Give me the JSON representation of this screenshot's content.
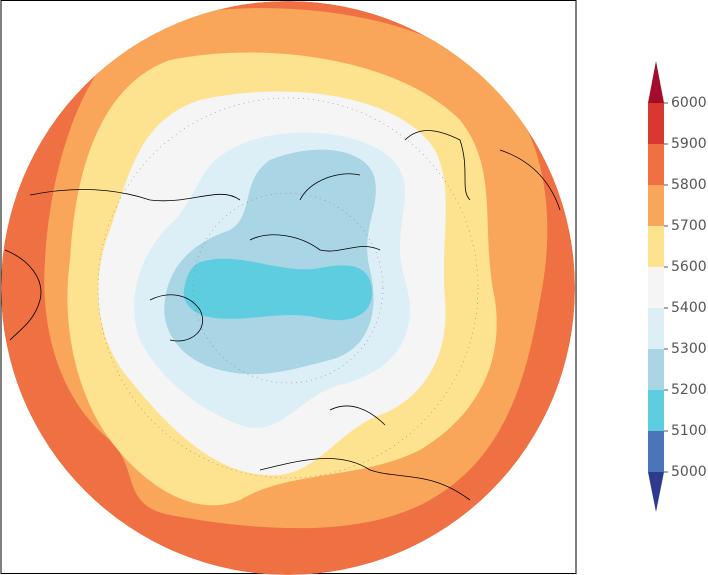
{
  "colorbar": {
    "levels": [
      5000,
      5100,
      5200,
      5300,
      5400,
      5600,
      5700,
      5800,
      5900,
      6000
    ],
    "colors": [
      "#2d3a8e",
      "#4a76b9",
      "#5fcde0",
      "#a9d5e5",
      "#ddeff6",
      "#f5f5f5",
      "#fde28f",
      "#f9a65b",
      "#ef7042",
      "#d7382f",
      "#a30d2c"
    ]
  }
}
